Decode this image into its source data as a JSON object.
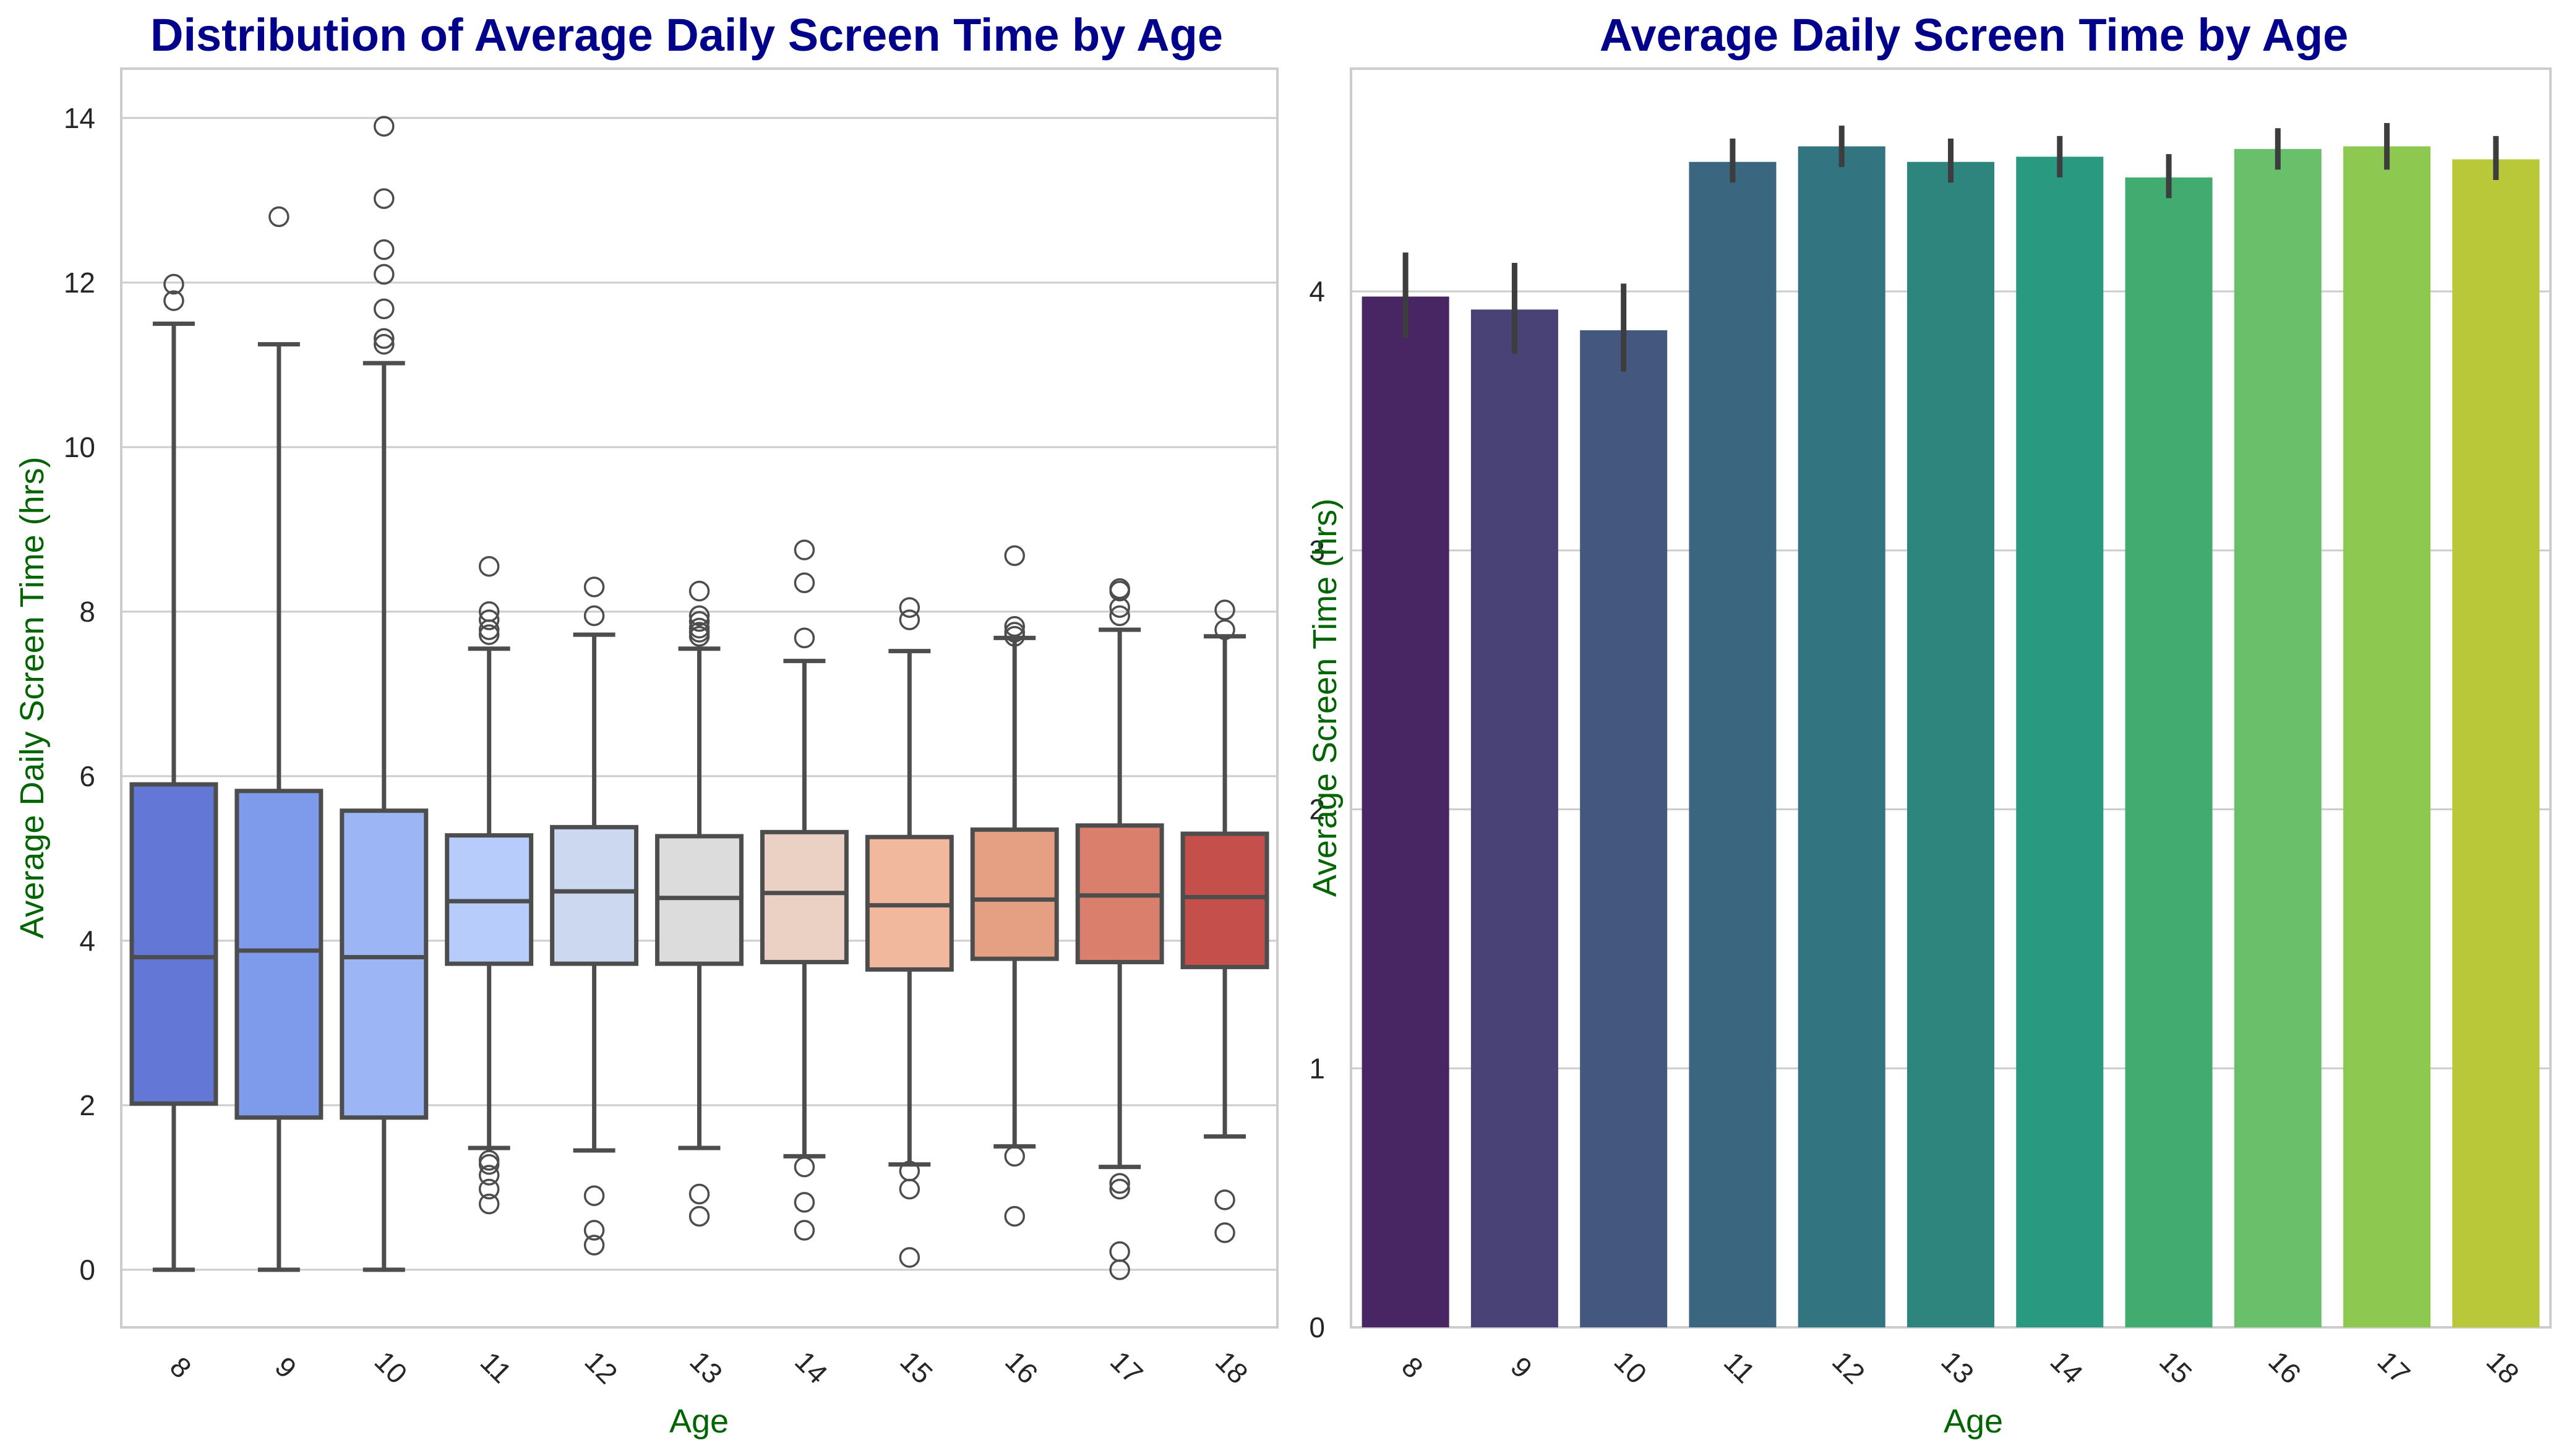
{
  "chart_data": [
    {
      "type": "box",
      "title": "Distribution of Average Daily Screen Time by Age",
      "xlabel": "Age",
      "ylabel": "Average Daily Screen Time (hrs)",
      "categories": [
        "8",
        "9",
        "10",
        "11",
        "12",
        "13",
        "14",
        "15",
        "16",
        "17",
        "18"
      ],
      "ylim": [
        -0.7,
        14.6
      ],
      "yticks": [
        0,
        2,
        4,
        6,
        8,
        10,
        12,
        14
      ],
      "yticklabels": [
        "0",
        "2",
        "4",
        "6",
        "8",
        "10",
        "12",
        "14"
      ],
      "grid": "horizontal",
      "palette": [
        "#6277d6",
        "#7e9aea",
        "#9bb5f5",
        "#b7ccfa",
        "#cbd8f0",
        "#dcdcdc",
        "#ebd0c4",
        "#f2b89e",
        "#e5a084",
        "#d97f6c",
        "#c5504b"
      ],
      "boxes": [
        {
          "q1": 2.02,
          "median": 3.8,
          "q3": 5.9,
          "whisker_low": 0.0,
          "whisker_high": 11.5,
          "outliers": [
            11.78,
            11.98
          ]
        },
        {
          "q1": 1.85,
          "median": 3.88,
          "q3": 5.82,
          "whisker_low": 0.0,
          "whisker_high": 11.25,
          "outliers": [
            12.8
          ]
        },
        {
          "q1": 1.85,
          "median": 3.8,
          "q3": 5.58,
          "whisker_low": 0.0,
          "whisker_high": 11.02,
          "outliers": [
            11.25,
            11.32,
            11.68,
            12.1,
            12.4,
            13.02,
            13.9
          ]
        },
        {
          "q1": 3.72,
          "median": 4.48,
          "q3": 5.28,
          "whisker_low": 1.48,
          "whisker_high": 7.55,
          "outliers": [
            0.8,
            0.98,
            1.15,
            1.28,
            1.33,
            7.72,
            7.78,
            7.9,
            8.0,
            8.55
          ]
        },
        {
          "q1": 3.72,
          "median": 4.6,
          "q3": 5.38,
          "whisker_low": 1.45,
          "whisker_high": 7.72,
          "outliers": [
            0.3,
            0.48,
            0.9,
            7.95,
            8.3
          ]
        },
        {
          "q1": 3.72,
          "median": 4.52,
          "q3": 5.27,
          "whisker_low": 1.48,
          "whisker_high": 7.55,
          "outliers": [
            0.65,
            0.92,
            7.7,
            7.75,
            7.8,
            7.88,
            7.95,
            8.25
          ]
        },
        {
          "q1": 3.74,
          "median": 4.58,
          "q3": 5.32,
          "whisker_low": 1.38,
          "whisker_high": 7.4,
          "outliers": [
            0.48,
            0.82,
            1.25,
            7.68,
            8.35,
            8.75
          ]
        },
        {
          "q1": 3.65,
          "median": 4.43,
          "q3": 5.26,
          "whisker_low": 1.28,
          "whisker_high": 7.52,
          "outliers": [
            0.15,
            0.98,
            1.2,
            7.9,
            8.05
          ]
        },
        {
          "q1": 3.78,
          "median": 4.5,
          "q3": 5.35,
          "whisker_low": 1.5,
          "whisker_high": 7.68,
          "outliers": [
            0.65,
            1.38,
            7.7,
            7.75,
            7.82,
            8.68
          ]
        },
        {
          "q1": 3.74,
          "median": 4.55,
          "q3": 5.4,
          "whisker_low": 1.25,
          "whisker_high": 7.78,
          "outliers": [
            0.0,
            0.22,
            0.98,
            1.05,
            7.95,
            8.05,
            8.25,
            8.28
          ]
        },
        {
          "q1": 3.68,
          "median": 4.53,
          "q3": 5.3,
          "whisker_low": 1.62,
          "whisker_high": 7.7,
          "outliers": [
            0.45,
            0.85,
            7.78,
            8.02
          ]
        }
      ]
    },
    {
      "type": "bar",
      "title": "Average Daily Screen Time by Age",
      "xlabel": "Age",
      "ylabel": "Average Screen Time (hrs)",
      "categories": [
        "8",
        "9",
        "10",
        "11",
        "12",
        "13",
        "14",
        "15",
        "16",
        "17",
        "18"
      ],
      "values": [
        3.98,
        3.93,
        3.85,
        4.5,
        4.56,
        4.5,
        4.52,
        4.44,
        4.55,
        4.56,
        4.51
      ],
      "ci_low": [
        3.82,
        3.76,
        3.69,
        4.42,
        4.48,
        4.42,
        4.44,
        4.36,
        4.47,
        4.47,
        4.43
      ],
      "ci_high": [
        4.15,
        4.11,
        4.03,
        4.59,
        4.64,
        4.59,
        4.6,
        4.53,
        4.63,
        4.65,
        4.6
      ],
      "ylim": [
        0,
        4.86
      ],
      "yticks": [
        0,
        1,
        2,
        3,
        4
      ],
      "yticklabels": [
        "0",
        "1",
        "2",
        "3",
        "4"
      ],
      "grid": "horizontal",
      "palette": [
        "#472663",
        "#484277",
        "#43577f",
        "#3b6680",
        "#32747f",
        "#2e857d",
        "#299a80",
        "#41ab70",
        "#6abf6a",
        "#8dc850",
        "#b8c839"
      ]
    }
  ]
}
